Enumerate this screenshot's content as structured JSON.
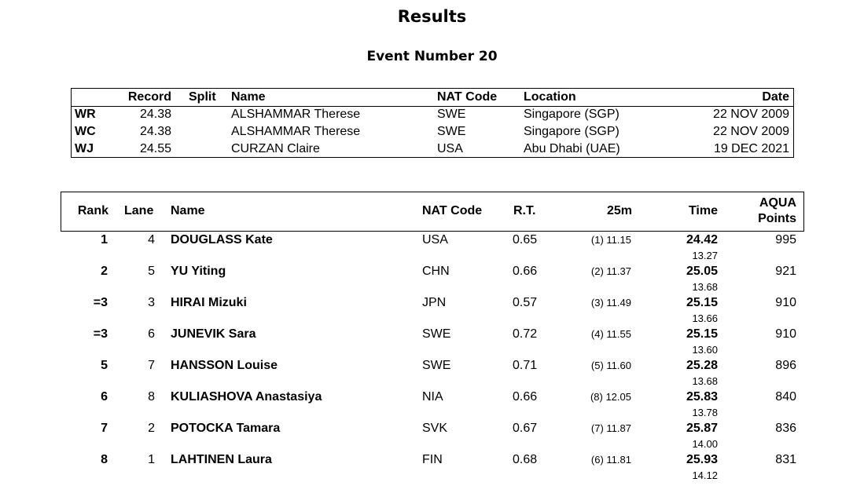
{
  "page": {
    "title": "Results",
    "event": "Event Number 20"
  },
  "records": {
    "headers": {
      "record": "Record",
      "split": "Split",
      "name": "Name",
      "nat": "NAT Code",
      "location": "Location",
      "date": "Date"
    },
    "rows": [
      {
        "type": "WR",
        "record": "24.38",
        "name": "ALSHAMMAR Therese",
        "nat": "SWE",
        "location": "Singapore (SGP)",
        "date": "22 NOV 2009"
      },
      {
        "type": "WC",
        "record": "24.38",
        "name": "ALSHAMMAR Therese",
        "nat": "SWE",
        "location": "Singapore (SGP)",
        "date": "22 NOV 2009"
      },
      {
        "type": "WJ",
        "record": "24.55",
        "name": "CURZAN Claire",
        "nat": "USA",
        "location": "Abu Dhabi (UAE)",
        "date": "19 DEC 2021"
      }
    ]
  },
  "results": {
    "headers": {
      "rank": "Rank",
      "lane": "Lane",
      "name": "Name",
      "nat": "NAT Code",
      "rt": "R.T.",
      "split": "25m",
      "time": "Time",
      "points_line1": "AQUA",
      "points_line2": "Points"
    },
    "rows": [
      {
        "rank": "1",
        "lane": "4",
        "name": "DOUGLASS Kate",
        "nat": "USA",
        "rt": "0.65",
        "split": "(1) 11.15",
        "time": "24.42",
        "sub": "13.27",
        "points": "995"
      },
      {
        "rank": "2",
        "lane": "5",
        "name": "YU Yiting",
        "nat": "CHN",
        "rt": "0.66",
        "split": "(2) 11.37",
        "time": "25.05",
        "sub": "13.68",
        "points": "921"
      },
      {
        "rank": "=3",
        "lane": "3",
        "name": "HIRAI Mizuki",
        "nat": "JPN",
        "rt": "0.57",
        "split": "(3) 11.49",
        "time": "25.15",
        "sub": "13.66",
        "points": "910"
      },
      {
        "rank": "=3",
        "lane": "6",
        "name": "JUNEVIK Sara",
        "nat": "SWE",
        "rt": "0.72",
        "split": "(4) 11.55",
        "time": "25.15",
        "sub": "13.60",
        "points": "910"
      },
      {
        "rank": "5",
        "lane": "7",
        "name": "HANSSON Louise",
        "nat": "SWE",
        "rt": "0.71",
        "split": "(5) 11.60",
        "time": "25.28",
        "sub": "13.68",
        "points": "896"
      },
      {
        "rank": "6",
        "lane": "8",
        "name": "KULIASHOVA Anastasiya",
        "nat": "NIA",
        "rt": "0.66",
        "split": "(8) 12.05",
        "time": "25.83",
        "sub": "13.78",
        "points": "840"
      },
      {
        "rank": "7",
        "lane": "2",
        "name": "POTOCKA Tamara",
        "nat": "SVK",
        "rt": "0.67",
        "split": "(7) 11.87",
        "time": "25.87",
        "sub": "14.00",
        "points": "836"
      },
      {
        "rank": "8",
        "lane": "1",
        "name": "LAHTINEN Laura",
        "nat": "FIN",
        "rt": "0.68",
        "split": "(6) 11.81",
        "time": "25.93",
        "sub": "14.12",
        "points": "831"
      }
    ]
  }
}
